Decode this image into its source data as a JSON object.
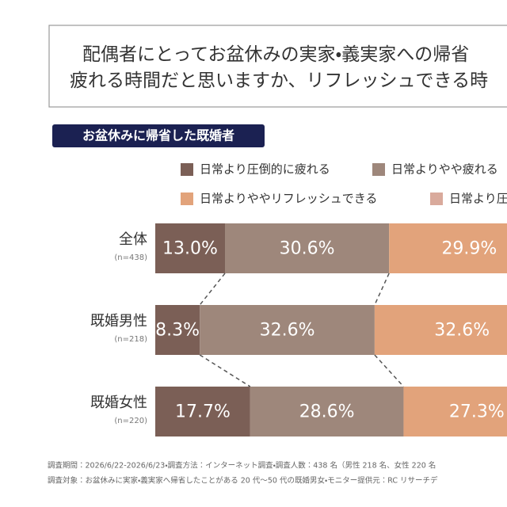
{
  "chart_data": {
    "type": "stacked-bar",
    "title": [
      "配偶者にとってお盆休みの実家・義実家への帰省",
      "疲れる時間だと思いますか、リフレッシュできる時"
    ],
    "subtitle": "お盆休みに帰省した既婚者",
    "categories": [
      "全体",
      "既婚男性",
      "既婚女性"
    ],
    "category_notes": [
      "(n=438)",
      "(n=218)",
      "(n=220)"
    ],
    "xlim": [
      0,
      100
    ],
    "series": [
      {
        "name": "日常より圧倒的に疲れる",
        "color": "#7b5f56",
        "values": [
          13.0,
          8.3,
          17.7
        ],
        "value_labels": [
          "13.0%",
          "8.3%",
          "17.7%"
        ]
      },
      {
        "name": "日常よりやや疲れる",
        "color": "#9e877b",
        "values": [
          30.6,
          32.6,
          28.6
        ],
        "value_labels": [
          "30.6%",
          "32.6%",
          "28.6%"
        ]
      },
      {
        "name": "日常よりややリフレッシュできる",
        "color": "#e2a37b",
        "values": [
          29.9,
          32.6,
          27.3
        ],
        "value_labels": [
          "29.9%",
          "32.6%",
          "27.3%"
        ]
      },
      {
        "name": "日常より圧倒的にリフレッシュできる",
        "color": "#d9aa9c",
        "values": [
          null,
          null,
          null
        ]
      }
    ],
    "footnotes": [
      "調査期間：2026/6/22-2026/6/23・調査方法：インターネット調査・調査人数：438 名（男性 218 名、女性 220 名",
      "調査対象：お盆休みに実家・義実家へ帰省したことがある 20 代〜50 代の既婚男女・モニター提供元：RC リサーチデ"
    ]
  }
}
